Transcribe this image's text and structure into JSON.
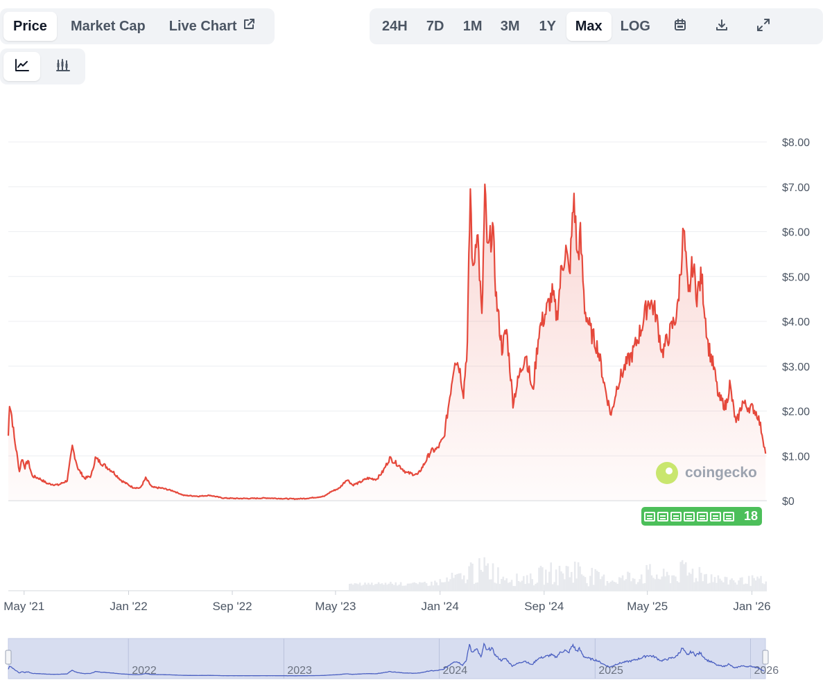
{
  "tabs": [
    {
      "label": "Price",
      "active": true
    },
    {
      "label": "Market Cap",
      "active": false
    },
    {
      "label": "Live Chart",
      "active": false,
      "icon": "external-link-icon"
    }
  ],
  "ranges": [
    {
      "label": "24H",
      "active": false
    },
    {
      "label": "7D",
      "active": false
    },
    {
      "label": "1M",
      "active": false
    },
    {
      "label": "3M",
      "active": false
    },
    {
      "label": "1Y",
      "active": false
    },
    {
      "label": "Max",
      "active": true
    },
    {
      "label": "LOG",
      "active": false
    }
  ],
  "toolbar_icons": [
    "calendar-icon",
    "download-icon",
    "expand-icon"
  ],
  "chart_types": [
    {
      "icon": "line-chart-icon",
      "active": true
    },
    {
      "icon": "candlestick-icon",
      "active": false
    }
  ],
  "watermark": {
    "text": "coingecko"
  },
  "news": {
    "count": "18",
    "icon": "news-icon"
  },
  "colors": {
    "line": "#e5483b",
    "navigator_line": "#4a5fc1",
    "news": "#4cbf5a"
  },
  "chart_data": {
    "type": "area",
    "title": "",
    "xlabel": "",
    "ylabel": "",
    "y_tick_labels": [
      "$0",
      "$1.00",
      "$2.00",
      "$3.00",
      "$4.00",
      "$5.00",
      "$6.00",
      "$7.00",
      "$8.00"
    ],
    "ylim": [
      0,
      8
    ],
    "xlim": [
      "2021-03-25",
      "2026-02-05"
    ],
    "x_tick_labels": [
      {
        "date": "2021-05-01",
        "label": "May '21"
      },
      {
        "date": "2022-01-01",
        "label": "Jan '22"
      },
      {
        "date": "2022-09-01",
        "label": "Sep '22"
      },
      {
        "date": "2023-05-01",
        "label": "May '23"
      },
      {
        "date": "2024-01-01",
        "label": "Jan '24"
      },
      {
        "date": "2024-09-01",
        "label": "Sep '24"
      },
      {
        "date": "2025-05-01",
        "label": "May '25"
      },
      {
        "date": "2026-01-01",
        "label": "Jan '26"
      }
    ],
    "navigator_labels": [
      {
        "date": "2022-01-01",
        "label": "2022"
      },
      {
        "date": "2023-01-01",
        "label": "2023"
      },
      {
        "date": "2024-01-01",
        "label": "2024"
      },
      {
        "date": "2025-01-01",
        "label": "2025"
      },
      {
        "date": "2026-01-01",
        "label": "2026"
      }
    ],
    "grid": true,
    "series": [
      {
        "points": [
          [
            "2021-03-25",
            1.45
          ],
          [
            "2021-03-28",
            2.2
          ],
          [
            "2021-04-02",
            1.9
          ],
          [
            "2021-04-08",
            1.4
          ],
          [
            "2021-04-14",
            1.05
          ],
          [
            "2021-04-20",
            0.65
          ],
          [
            "2021-04-26",
            0.95
          ],
          [
            "2021-05-03",
            0.75
          ],
          [
            "2021-05-10",
            0.9
          ],
          [
            "2021-05-20",
            0.55
          ],
          [
            "2021-06-05",
            0.5
          ],
          [
            "2021-06-25",
            0.38
          ],
          [
            "2021-07-20",
            0.35
          ],
          [
            "2021-08-10",
            0.45
          ],
          [
            "2021-08-22",
            1.2
          ],
          [
            "2021-09-05",
            0.7
          ],
          [
            "2021-09-20",
            0.5
          ],
          [
            "2021-10-05",
            0.55
          ],
          [
            "2021-10-15",
            0.95
          ],
          [
            "2021-11-01",
            0.82
          ],
          [
            "2021-11-25",
            0.65
          ],
          [
            "2021-12-15",
            0.45
          ],
          [
            "2022-01-10",
            0.3
          ],
          [
            "2022-01-28",
            0.28
          ],
          [
            "2022-02-10",
            0.5
          ],
          [
            "2022-02-25",
            0.3
          ],
          [
            "2022-03-20",
            0.28
          ],
          [
            "2022-04-15",
            0.22
          ],
          [
            "2022-05-10",
            0.12
          ],
          [
            "2022-06-15",
            0.1
          ],
          [
            "2022-07-10",
            0.12
          ],
          [
            "2022-08-10",
            0.06
          ],
          [
            "2022-09-10",
            0.05
          ],
          [
            "2022-10-15",
            0.05
          ],
          [
            "2022-11-20",
            0.06
          ],
          [
            "2022-12-20",
            0.05
          ],
          [
            "2023-01-25",
            0.04
          ],
          [
            "2023-02-20",
            0.05
          ],
          [
            "2023-03-20",
            0.08
          ],
          [
            "2023-04-05",
            0.1
          ],
          [
            "2023-04-20",
            0.2
          ],
          [
            "2023-05-10",
            0.28
          ],
          [
            "2023-05-28",
            0.48
          ],
          [
            "2023-06-10",
            0.35
          ],
          [
            "2023-06-25",
            0.4
          ],
          [
            "2023-07-15",
            0.5
          ],
          [
            "2023-08-05",
            0.48
          ],
          [
            "2023-08-20",
            0.65
          ],
          [
            "2023-09-05",
            0.95
          ],
          [
            "2023-09-25",
            0.8
          ],
          [
            "2023-10-15",
            0.62
          ],
          [
            "2023-11-10",
            0.58
          ],
          [
            "2023-11-25",
            0.82
          ],
          [
            "2023-12-10",
            1.1
          ],
          [
            "2023-12-25",
            1.15
          ],
          [
            "2024-01-10",
            1.4
          ],
          [
            "2024-01-22",
            2.2
          ],
          [
            "2024-02-05",
            3.2
          ],
          [
            "2024-02-15",
            3.0
          ],
          [
            "2024-02-25",
            2.4
          ],
          [
            "2024-03-05",
            3.5
          ],
          [
            "2024-03-12",
            6.95
          ],
          [
            "2024-03-18",
            5.0
          ],
          [
            "2024-03-28",
            6.2
          ],
          [
            "2024-04-08",
            4.0
          ],
          [
            "2024-04-15",
            6.85
          ],
          [
            "2024-04-22",
            5.5
          ],
          [
            "2024-05-03",
            6.1
          ],
          [
            "2024-05-12",
            4.5
          ],
          [
            "2024-05-25",
            3.4
          ],
          [
            "2024-06-05",
            3.8
          ],
          [
            "2024-06-20",
            2.2
          ],
          [
            "2024-07-05",
            2.8
          ],
          [
            "2024-07-20",
            3.3
          ],
          [
            "2024-08-05",
            2.4
          ],
          [
            "2024-08-20",
            3.8
          ],
          [
            "2024-09-05",
            4.2
          ],
          [
            "2024-09-20",
            4.6
          ],
          [
            "2024-10-01",
            4.1
          ],
          [
            "2024-10-12",
            5.2
          ],
          [
            "2024-10-22",
            5.6
          ],
          [
            "2024-10-30",
            5.0
          ],
          [
            "2024-11-10",
            6.8
          ],
          [
            "2024-11-18",
            5.4
          ],
          [
            "2024-11-25",
            5.9
          ],
          [
            "2024-12-05",
            4.3
          ],
          [
            "2024-12-18",
            3.8
          ],
          [
            "2025-01-05",
            3.4
          ],
          [
            "2025-01-20",
            2.6
          ],
          [
            "2025-02-05",
            1.9
          ],
          [
            "2025-02-20",
            2.6
          ],
          [
            "2025-03-10",
            3.0
          ],
          [
            "2025-03-28",
            3.3
          ],
          [
            "2025-04-15",
            3.8
          ],
          [
            "2025-05-05",
            4.5
          ],
          [
            "2025-05-20",
            4.2
          ],
          [
            "2025-06-05",
            3.3
          ],
          [
            "2025-06-25",
            3.8
          ],
          [
            "2025-07-10",
            4.2
          ],
          [
            "2025-07-25",
            6.05
          ],
          [
            "2025-08-05",
            4.5
          ],
          [
            "2025-08-15",
            5.3
          ],
          [
            "2025-08-25",
            4.6
          ],
          [
            "2025-09-05",
            5.0
          ],
          [
            "2025-09-20",
            3.5
          ],
          [
            "2025-10-05",
            2.9
          ],
          [
            "2025-10-15",
            2.3
          ],
          [
            "2025-11-01",
            2.1
          ],
          [
            "2025-11-10",
            2.6
          ],
          [
            "2025-11-25",
            1.7
          ],
          [
            "2025-12-10",
            2.2
          ],
          [
            "2025-12-20",
            2.1
          ],
          [
            "2026-01-05",
            2.05
          ],
          [
            "2026-01-15",
            1.9
          ],
          [
            "2026-01-25",
            1.5
          ],
          [
            "2026-02-02",
            1.05
          ]
        ]
      }
    ]
  }
}
